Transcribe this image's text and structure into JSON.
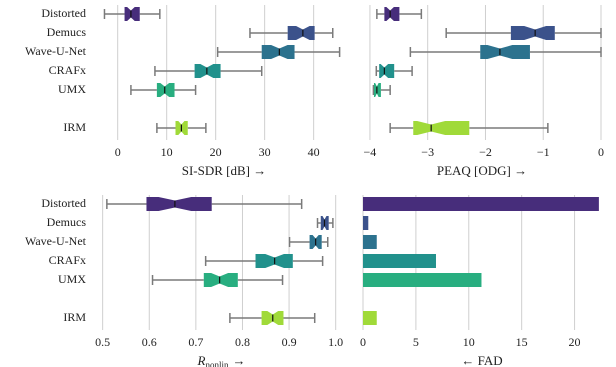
{
  "chart_data": [
    {
      "type": "box",
      "xlabel": "SI-SDR [dB] →",
      "categories": [
        "Distorted",
        "Demucs",
        "Wave-U-Net",
        "CRAFx",
        "UMX",
        null,
        "IRM"
      ],
      "colors": [
        "#472d7b",
        "#3b528b",
        "#2c728e",
        "#21918c",
        "#28ae80",
        null,
        "#a0da39"
      ],
      "whislo": [
        -2.7,
        27,
        20.4,
        7.6,
        2.7,
        null,
        8
      ],
      "q1": [
        1.4,
        34.7,
        29.4,
        15.7,
        8,
        null,
        11.8
      ],
      "median": [
        2.7,
        37.8,
        33,
        18.2,
        9.6,
        null,
        13
      ],
      "q3": [
        4.5,
        40.2,
        36.1,
        21,
        11.6,
        null,
        14.3
      ],
      "whishi": [
        8.6,
        43.9,
        45.3,
        29.4,
        15.9,
        null,
        18
      ],
      "xlim": [
        -3,
        46.4
      ],
      "xticks": [
        0,
        10,
        20,
        30,
        40
      ],
      "grid": true
    },
    {
      "type": "box",
      "xlabel": "PEAQ [ODG] →",
      "colors": [
        "#472d7b",
        "#3b528b",
        "#2c728e",
        "#21918c",
        "#28ae80",
        null,
        "#a0da39"
      ],
      "whislo": [
        -3.88,
        -2.68,
        -3.3,
        -3.89,
        -3.94,
        null,
        -3.65
      ],
      "q1": [
        -3.75,
        -1.56,
        -2.09,
        -3.84,
        -3.93,
        null,
        -3.25
      ],
      "median": [
        -3.65,
        -1.14,
        -1.75,
        -3.75,
        -3.88,
        null,
        -2.94
      ],
      "q3": [
        -3.49,
        -0.8,
        -1.23,
        -3.58,
        -3.81,
        null,
        -2.28
      ],
      "whishi": [
        -3.11,
        0,
        0,
        -3.27,
        -3.65,
        null,
        -0.92
      ],
      "xlim": [
        -4.12,
        0
      ],
      "xticks": [
        {
          "value": -4,
          "label": "−4"
        },
        {
          "value": -3,
          "label": "−3"
        },
        {
          "value": -2,
          "label": "−2"
        },
        {
          "value": -1,
          "label": "−1"
        },
        0
      ],
      "grid": true
    },
    {
      "type": "box",
      "xlabel": "R",
      "xlabel_sub": "nonlin",
      "xlabel_suffix": "→",
      "categories": [
        "Distorted",
        "Demucs",
        "Wave-U-Net",
        "CRAFx",
        "UMX",
        null,
        "IRM"
      ],
      "colors": [
        "#472d7b",
        "#3b528b",
        "#2c728e",
        "#21918c",
        "#28ae80",
        null,
        "#a0da39"
      ],
      "whislo": [
        0.509,
        0.961,
        0.901,
        0.721,
        0.607,
        null,
        0.773
      ],
      "q1": [
        0.594,
        0.968,
        0.944,
        0.828,
        0.717,
        null,
        0.841
      ],
      "median": [
        0.655,
        0.976,
        0.957,
        0.869,
        0.751,
        null,
        0.865
      ],
      "q3": [
        0.734,
        0.985,
        0.97,
        0.908,
        0.79,
        null,
        0.888
      ],
      "whishi": [
        0.927,
        0.994,
        0.983,
        0.972,
        0.886,
        null,
        0.955
      ],
      "xlim": [
        0.49,
        1.02
      ],
      "xticks": [
        0.5,
        0.6,
        0.7,
        0.8,
        0.9,
        {
          "value": 1,
          "label": "1.0"
        }
      ],
      "grid": true
    },
    {
      "type": "bar",
      "xlabel": "← FAD",
      "colors": [
        "#472d7b",
        "#3b528b",
        "#2c728e",
        "#21918c",
        "#28ae80",
        null,
        "#a0da39"
      ],
      "values": [
        22.3,
        0.5,
        1.3,
        6.9,
        11.2,
        null,
        1.3
      ],
      "xlim": [
        0,
        22.5
      ],
      "xticks": [
        0,
        5,
        10,
        15,
        20
      ],
      "grid": true
    }
  ]
}
